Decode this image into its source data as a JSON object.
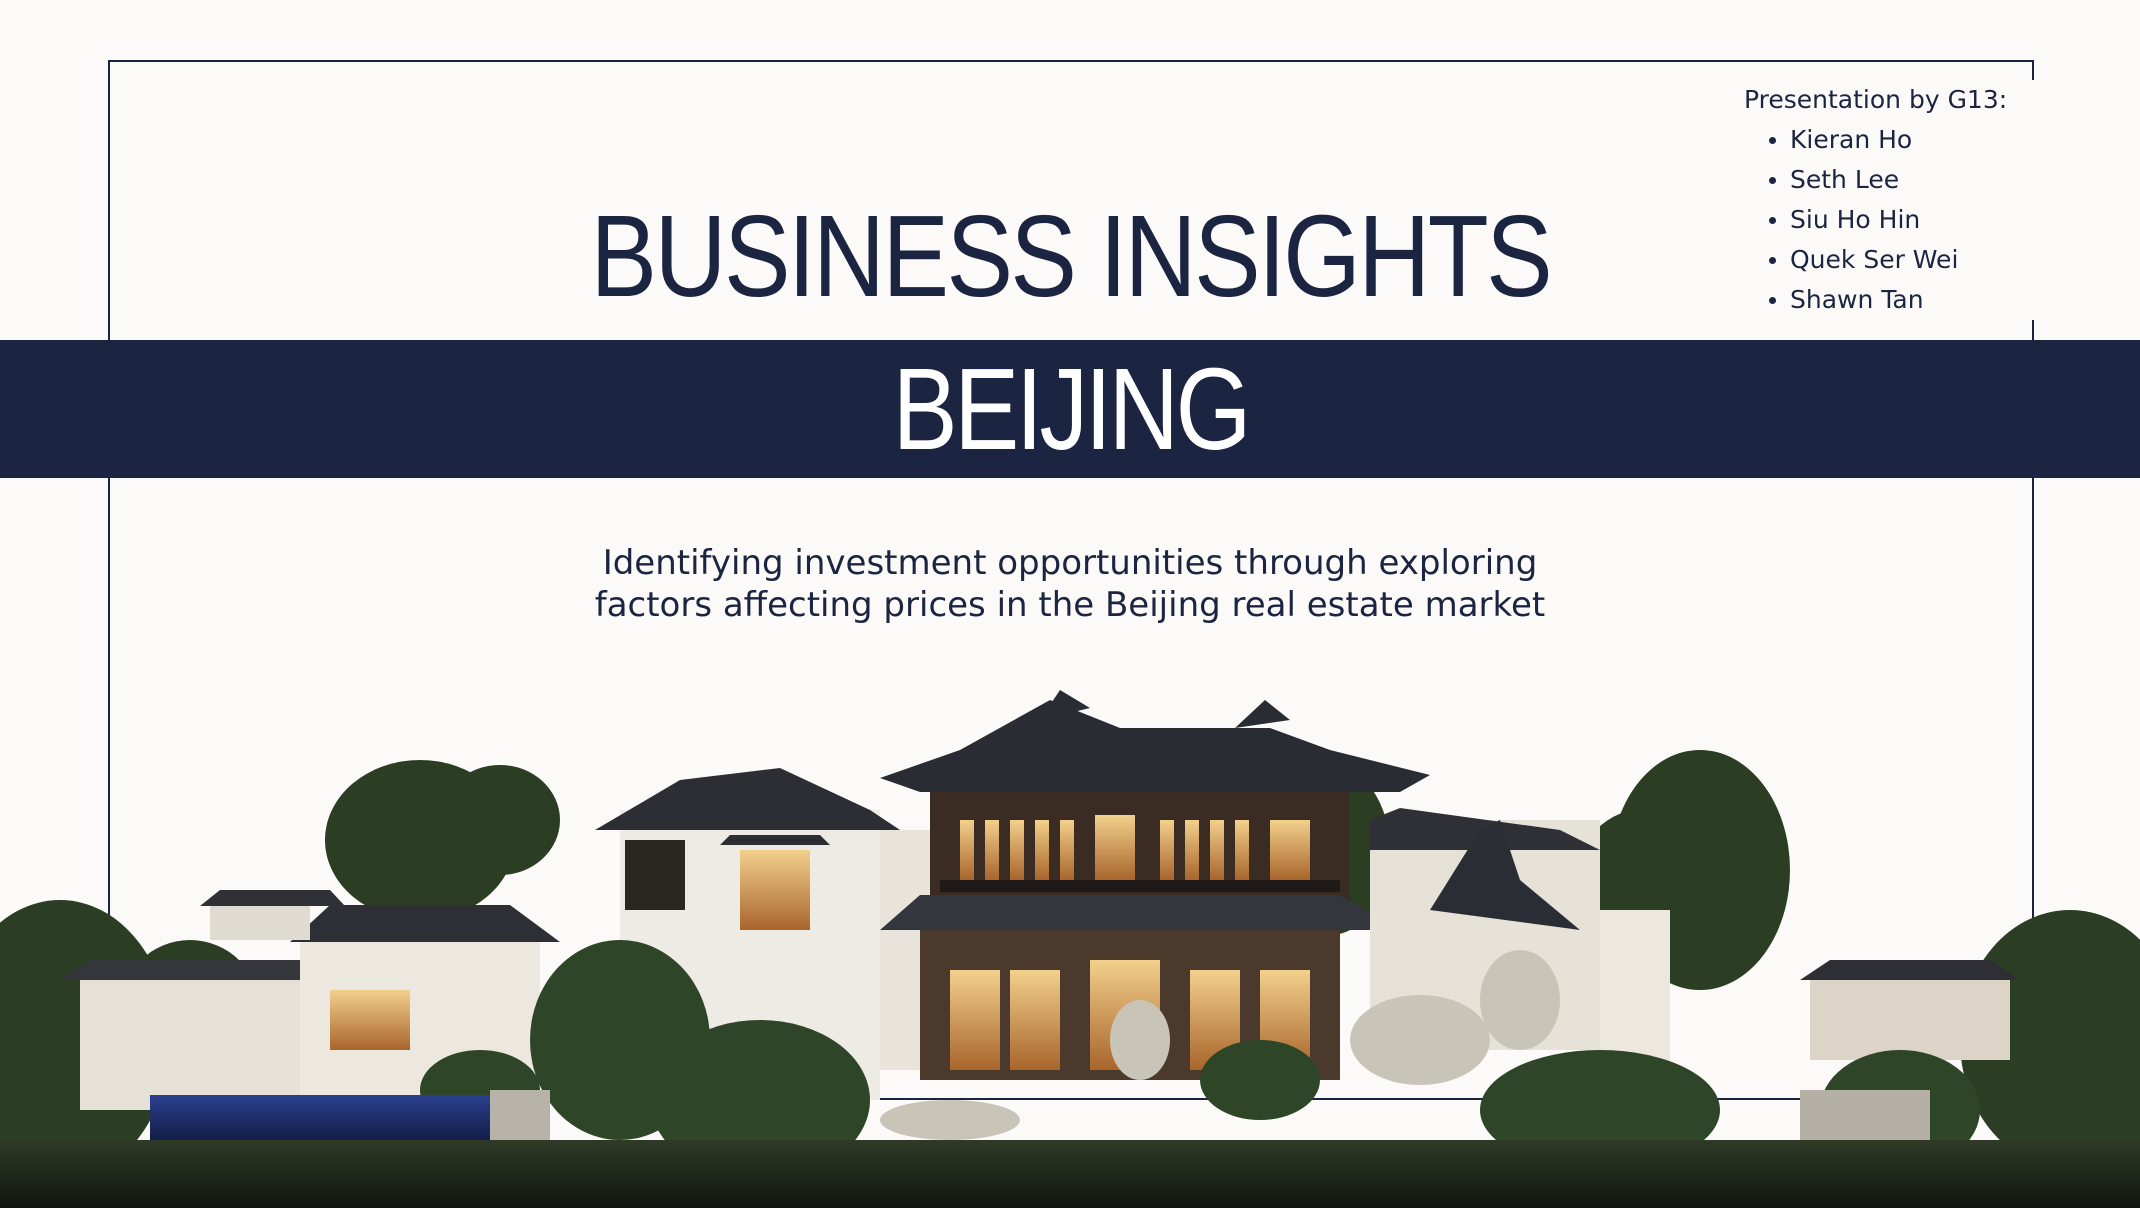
{
  "slide": {
    "title": "BUSINESS INSIGHTS",
    "band_title": "BEIJING",
    "subtitle_line_1": "Identifying investment opportunities through exploring",
    "subtitle_line_2": "factors affecting prices in the Beijing real estate market"
  },
  "presenters": {
    "heading": "Presentation by G13:",
    "names": [
      "Kieran Ho",
      "Seth Lee",
      "Siu Ho Hin",
      "Quek Ser Wei",
      "Shawn Tan"
    ]
  },
  "colors": {
    "navy": "#1b2440",
    "background": "#fbfaf8"
  },
  "image": {
    "subject": "traditional Chinese courtyard mansion with gardens"
  }
}
